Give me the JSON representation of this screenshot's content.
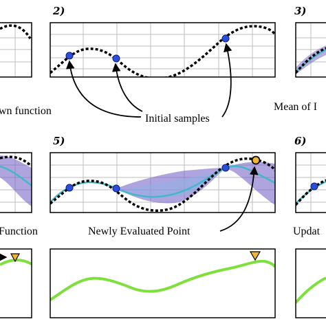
{
  "panels": {
    "p2": {
      "label": "2)"
    },
    "p3": {
      "label": "3)"
    },
    "p5": {
      "label": "5)"
    },
    "p6": {
      "label": "6)"
    }
  },
  "captions": {
    "unknown_function": "wn function",
    "initial_samples": "Initial samples",
    "mean_of": "Mean of I",
    "acquisition_function": "Function",
    "newly_evaluated_point": "Newly Evaluated Point",
    "update": "Updat"
  },
  "colors": {
    "true_function": "#000000",
    "sample_point": "#2b4fd6",
    "mean": "#3fb8c9",
    "uncertainty": "#7b68c8",
    "acquisition": "#7ee03a",
    "new_point": "#f2b531",
    "grid": "#bdbdbd"
  },
  "icons": {
    "next_marker": "orange-triangle-icon",
    "arrow": "arrow-icon"
  }
}
